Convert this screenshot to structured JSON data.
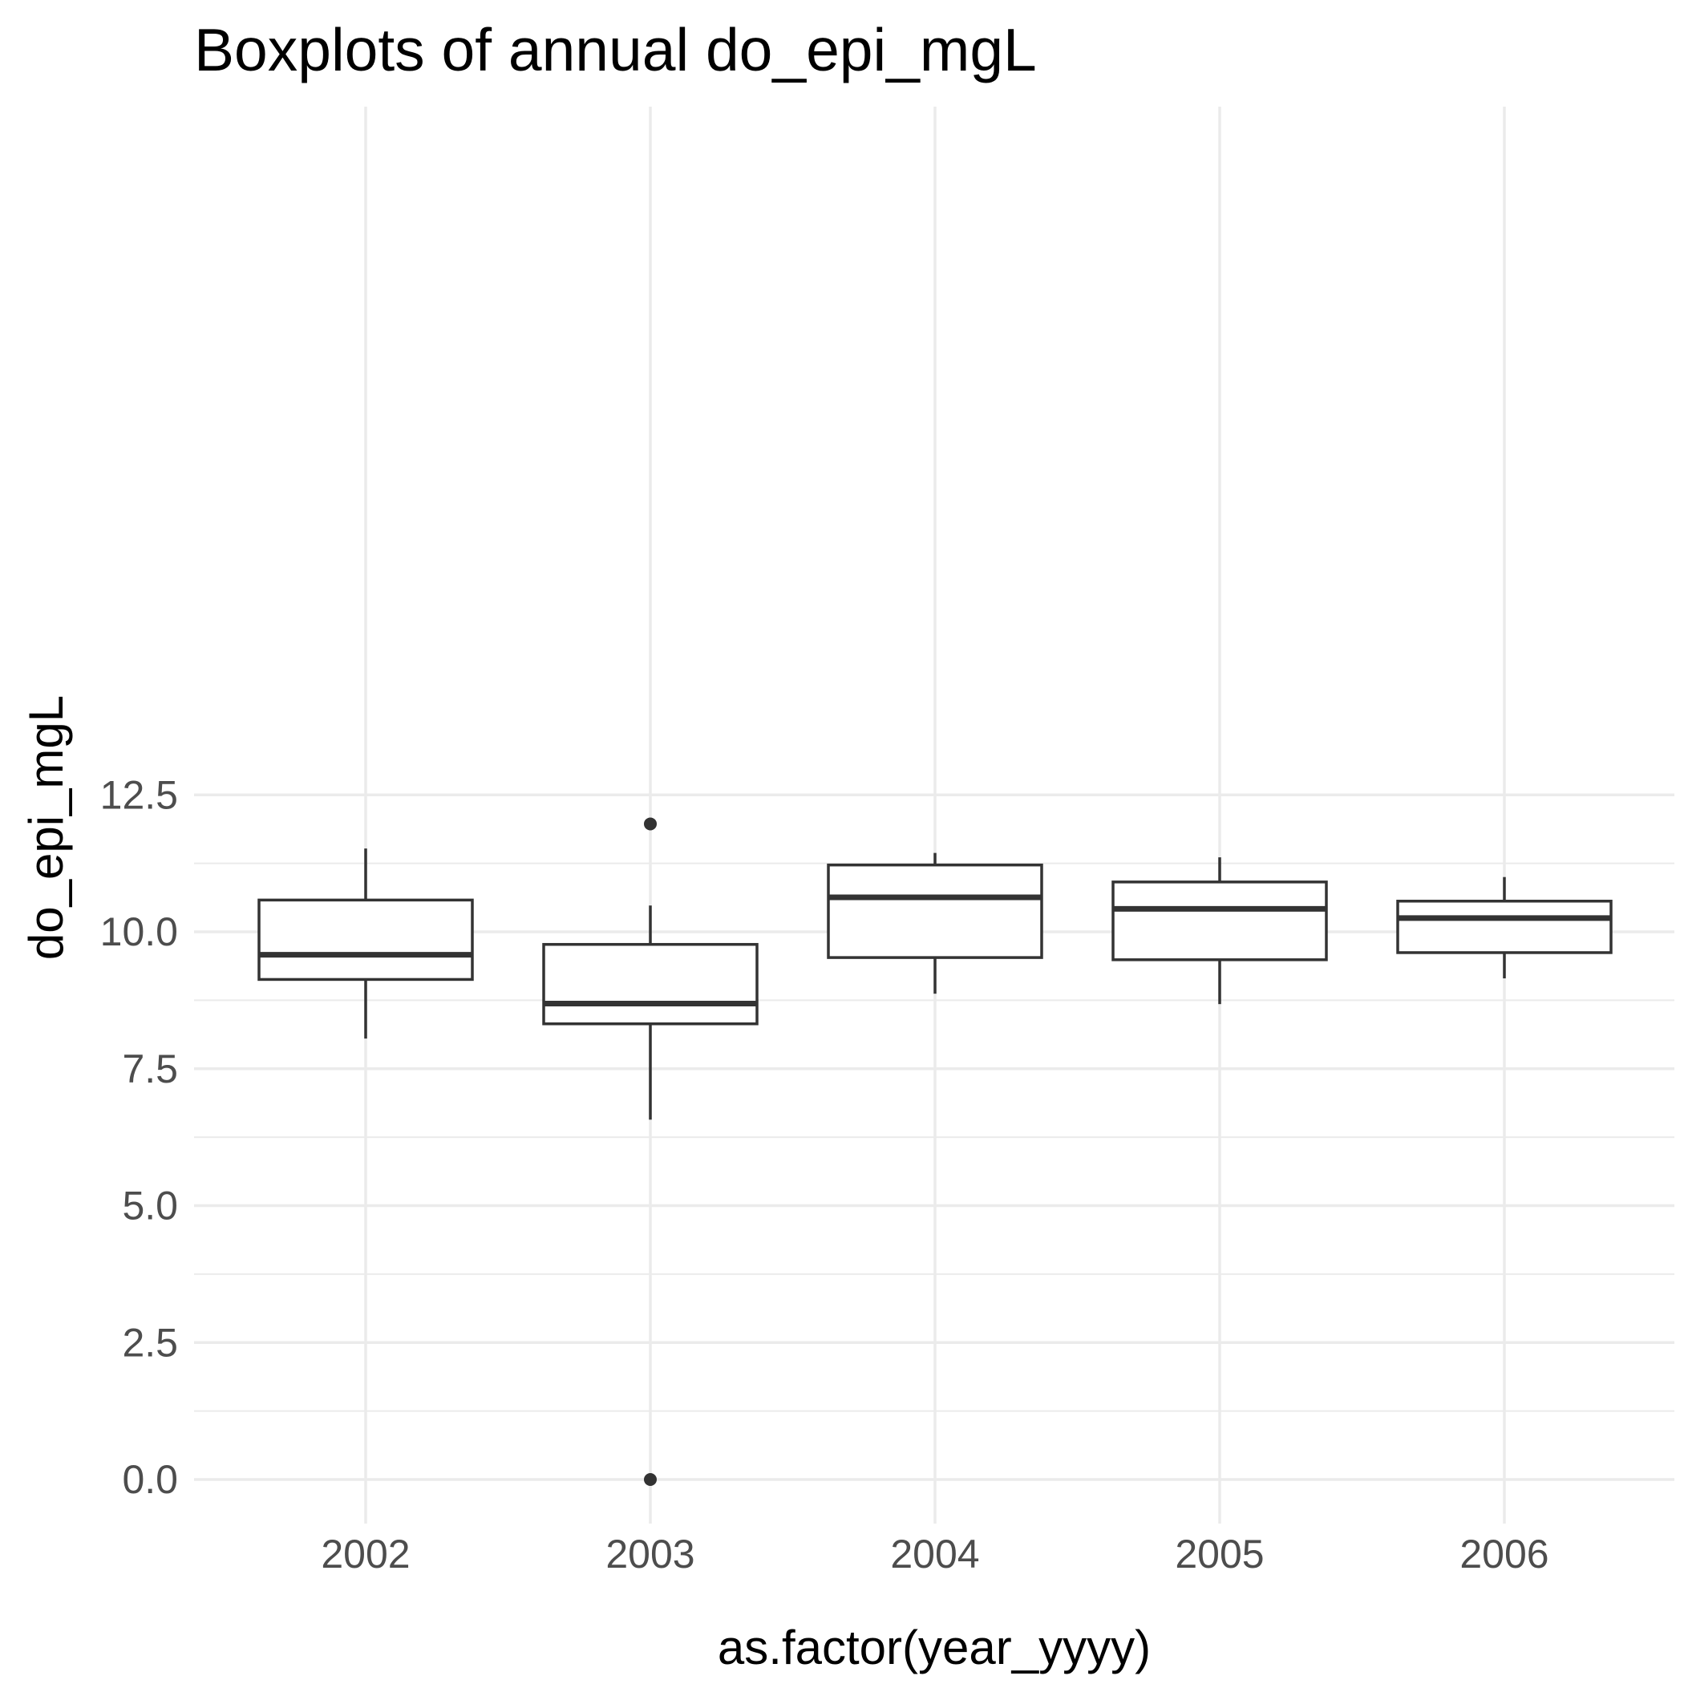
{
  "chart_data": {
    "type": "boxplot",
    "title": "Boxplots of annual do_epi_mgL",
    "xlabel": "as.factor(year_yyyy)",
    "ylabel": "do_epi_mgL",
    "ylim": [
      -0.6,
      12.5
    ],
    "y_ticks": [
      0,
      2.5,
      5,
      7.5,
      10,
      12.5
    ],
    "y_tick_labels": [
      "0.0",
      "2.5",
      "5.0",
      "7.5",
      "10.0",
      "12.5"
    ],
    "y_minor_ticks": [
      1.25,
      3.75,
      6.25,
      8.75,
      11.25
    ],
    "categories": [
      "2002",
      "2003",
      "2004",
      "2005",
      "2006"
    ],
    "boxes": [
      {
        "category": "2002",
        "whisker_low": 8.05,
        "q1": 9.13,
        "median": 9.58,
        "q3": 10.58,
        "whisker_high": 11.52,
        "outliers": []
      },
      {
        "category": "2003",
        "whisker_low": 6.57,
        "q1": 8.32,
        "median": 8.69,
        "q3": 9.77,
        "whisker_high": 10.48,
        "outliers": [
          11.97,
          0.0
        ]
      },
      {
        "category": "2004",
        "whisker_low": 8.87,
        "q1": 9.53,
        "median": 10.63,
        "q3": 11.22,
        "whisker_high": 11.44,
        "outliers": []
      },
      {
        "category": "2005",
        "whisker_low": 8.68,
        "q1": 9.49,
        "median": 10.42,
        "q3": 10.91,
        "whisker_high": 11.36,
        "outliers": []
      },
      {
        "category": "2006",
        "whisker_low": 9.15,
        "q1": 9.62,
        "median": 10.25,
        "q3": 10.56,
        "whisker_high": 11.0,
        "outliers": []
      }
    ],
    "grid": true,
    "legend": "none",
    "colors": {
      "box_line": "#333333",
      "box_fill": "#ffffff",
      "grid": "#ebebeb",
      "tick_text": "#4d4d4d",
      "title_text": "#000000"
    }
  }
}
